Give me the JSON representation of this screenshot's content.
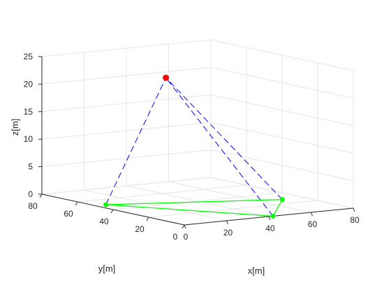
{
  "chart_data": {
    "type": "scatter3d",
    "title": "",
    "xlabel": "x[m]",
    "ylabel": "y[m]",
    "zlabel": "z[m]",
    "xlim": [
      0,
      80
    ],
    "ylim": [
      0,
      80
    ],
    "zlim": [
      0,
      25
    ],
    "xticks": [
      0,
      20,
      40,
      60,
      80
    ],
    "yticks": [
      0,
      20,
      40,
      60,
      80
    ],
    "zticks": [
      0,
      5,
      10,
      15,
      20,
      25
    ],
    "grid": true,
    "view": "perspective-3d",
    "apex": {
      "x": 25,
      "y": 40,
      "z": 23,
      "color": "#ff0000"
    },
    "base_points": [
      {
        "x": 5,
        "y": 50,
        "z": 0
      },
      {
        "x": 70,
        "y": 28,
        "z": 0
      },
      {
        "x": 42,
        "y": 0,
        "z": 0
      }
    ],
    "base_color": "#00ff00",
    "line_color_dashed": "#0000ff",
    "triangle_edges": [
      [
        0,
        1
      ],
      [
        1,
        2
      ],
      [
        2,
        0
      ]
    ],
    "dashed_edges": [
      [
        0,
        "apex"
      ],
      [
        1,
        "apex"
      ],
      [
        2,
        "apex"
      ]
    ]
  }
}
